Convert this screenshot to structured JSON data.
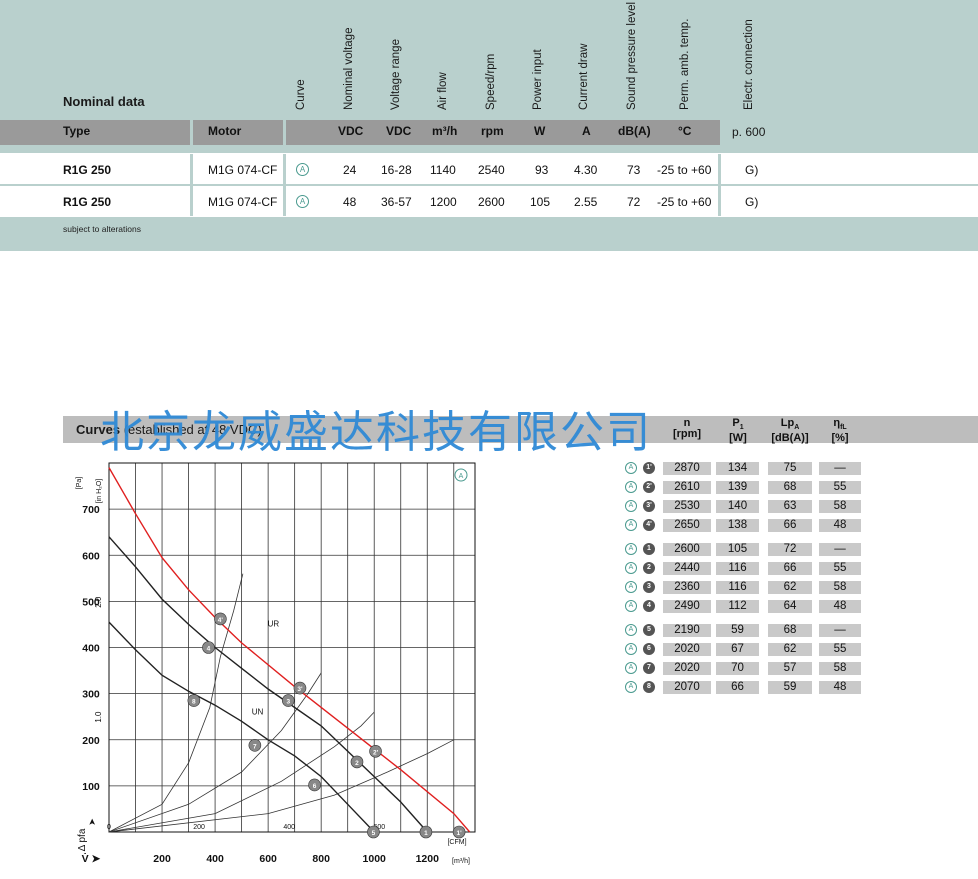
{
  "nominal": {
    "title": "Nominal data",
    "column_headers": [
      "Curve",
      "Nominal voltage",
      "Voltage range",
      "Air flow",
      "Speed/rpm",
      "Power input",
      "Current draw",
      "Sound pressure level",
      "Perm. amb. temp.",
      "Electr. connection"
    ],
    "type_label": "Type",
    "motor_label": "Motor",
    "units": [
      "VDC",
      "VDC",
      "m³/h",
      "rpm",
      "W",
      "A",
      "dB(A)",
      "°C"
    ],
    "page_ref": "p. 600",
    "rows": [
      {
        "type": "R1G 250",
        "motor": "M1G 074-CF",
        "curve": "A",
        "voltage": "24",
        "range": "16-28",
        "airflow": "1140",
        "speed": "2540",
        "power": "93",
        "current": "4.30",
        "sound": "73",
        "temp": "-25 to +60",
        "conn": "G)"
      },
      {
        "type": "R1G 250",
        "motor": "M1G 074-CF",
        "curve": "A",
        "voltage": "48",
        "range": "36-57",
        "airflow": "1200",
        "speed": "2600",
        "power": "105",
        "current": "2.55",
        "sound": "72",
        "temp": "-25 to +60",
        "conn": "G)"
      }
    ],
    "footnote": "subject to alterations"
  },
  "curves": {
    "title_bold": "Curves",
    "title_rest": " (established at 48 VDC)",
    "watermark": "北京龙威盛达科技有限公司",
    "table_headers": {
      "n": "n",
      "n_unit": "[rpm]",
      "p1": "P",
      "p1_sub": "1",
      "p1_unit": "[W]",
      "lpa": "Lp",
      "lpa_sub": "A",
      "lpa_unit": "[dB(A)]",
      "eta": "η",
      "eta_sub": "fL",
      "eta_unit": "[%]"
    },
    "table_rows": [
      {
        "curve": "A",
        "pt": "1'",
        "n": "2870",
        "p1": "134",
        "lpa": "75",
        "eta": "—"
      },
      {
        "curve": "A",
        "pt": "2'",
        "n": "2610",
        "p1": "139",
        "lpa": "68",
        "eta": "55"
      },
      {
        "curve": "A",
        "pt": "3'",
        "n": "2530",
        "p1": "140",
        "lpa": "63",
        "eta": "58"
      },
      {
        "curve": "A",
        "pt": "4'",
        "n": "2650",
        "p1": "138",
        "lpa": "66",
        "eta": "48"
      },
      {
        "curve": "A",
        "pt": "1",
        "n": "2600",
        "p1": "105",
        "lpa": "72",
        "eta": "—"
      },
      {
        "curve": "A",
        "pt": "2",
        "n": "2440",
        "p1": "116",
        "lpa": "66",
        "eta": "55"
      },
      {
        "curve": "A",
        "pt": "3",
        "n": "2360",
        "p1": "116",
        "lpa": "62",
        "eta": "58"
      },
      {
        "curve": "A",
        "pt": "4",
        "n": "2490",
        "p1": "112",
        "lpa": "64",
        "eta": "48"
      },
      {
        "curve": "A",
        "pt": "5",
        "n": "2190",
        "p1": "59",
        "lpa": "68",
        "eta": "—"
      },
      {
        "curve": "A",
        "pt": "6",
        "n": "2020",
        "p1": "67",
        "lpa": "62",
        "eta": "55"
      },
      {
        "curve": "A",
        "pt": "7",
        "n": "2020",
        "p1": "70",
        "lpa": "57",
        "eta": "58"
      },
      {
        "curve": "A",
        "pt": "8",
        "n": "2070",
        "p1": "66",
        "lpa": "59",
        "eta": "48"
      }
    ]
  },
  "chart_data": {
    "type": "line",
    "curve_marker": "A",
    "xlabel": "V̇",
    "xunit": "[m³/h]",
    "xunit2": "[CFM]",
    "ylabel": "Δ pfa",
    "yunit": "[Pa]",
    "yunit2": "[in H₂O]",
    "xlim": [
      0,
      1380
    ],
    "ylim": [
      0,
      800
    ],
    "x_ticks": [
      "200",
      "400",
      "600",
      "800",
      "1000",
      "1200"
    ],
    "x_tick_values": [
      200,
      400,
      600,
      800,
      1000,
      1200
    ],
    "cfm_ticks": [
      "0",
      "200",
      "400",
      "600"
    ],
    "cfm_tick_values": [
      0,
      200,
      400,
      600
    ],
    "y_ticks": [
      "100",
      "200",
      "300",
      "400",
      "500",
      "600",
      "700"
    ],
    "y_tick_values": [
      100,
      200,
      300,
      400,
      500,
      600,
      700
    ],
    "inh2o_ticks": [
      "1.0",
      "2.0"
    ],
    "inh2o_tick_values": [
      1.0,
      2.0
    ],
    "label_UR": "UR",
    "label_UN": "UN",
    "series": [
      {
        "name": "UR",
        "color": "#e02020",
        "points": [
          [
            0,
            790
          ],
          [
            100,
            690
          ],
          [
            200,
            595
          ],
          [
            300,
            525
          ],
          [
            400,
            465
          ],
          [
            500,
            410
          ],
          [
            700,
            315
          ],
          [
            900,
            225
          ],
          [
            1100,
            135
          ],
          [
            1300,
            40
          ],
          [
            1360,
            0
          ]
        ]
      },
      {
        "name": "UN",
        "color": "#222222",
        "points": [
          [
            0,
            640
          ],
          [
            100,
            575
          ],
          [
            200,
            505
          ],
          [
            300,
            450
          ],
          [
            400,
            400
          ],
          [
            500,
            355
          ],
          [
            600,
            310
          ],
          [
            700,
            270
          ],
          [
            800,
            230
          ],
          [
            900,
            175
          ],
          [
            1000,
            120
          ],
          [
            1100,
            65
          ],
          [
            1200,
            0
          ]
        ]
      },
      {
        "name": "",
        "color": "#222222",
        "points": [
          [
            0,
            455
          ],
          [
            100,
            395
          ],
          [
            200,
            340
          ],
          [
            300,
            305
          ],
          [
            400,
            275
          ],
          [
            500,
            240
          ],
          [
            600,
            200
          ],
          [
            700,
            165
          ],
          [
            800,
            120
          ],
          [
            900,
            60
          ],
          [
            1000,
            0
          ]
        ]
      }
    ],
    "system_curves": [
      {
        "points": [
          [
            0,
            0
          ],
          [
            200,
            60
          ],
          [
            300,
            150
          ],
          [
            380,
            270
          ],
          [
            420,
            380
          ],
          [
            470,
            480
          ],
          [
            505,
            560
          ]
        ]
      },
      {
        "points": [
          [
            0,
            0
          ],
          [
            300,
            60
          ],
          [
            500,
            130
          ],
          [
            650,
            220
          ],
          [
            750,
            300
          ],
          [
            800,
            345
          ]
        ]
      },
      {
        "points": [
          [
            0,
            0
          ],
          [
            400,
            40
          ],
          [
            650,
            110
          ],
          [
            850,
            185
          ],
          [
            950,
            230
          ],
          [
            1000,
            260
          ]
        ]
      },
      {
        "points": [
          [
            0,
            0
          ],
          [
            600,
            40
          ],
          [
            850,
            80
          ],
          [
            1050,
            130
          ],
          [
            1200,
            170
          ],
          [
            1300,
            200
          ]
        ]
      }
    ],
    "operating_points": [
      {
        "label": "1'",
        "x": 1320,
        "y": 0
      },
      {
        "label": "2'",
        "x": 1005,
        "y": 175
      },
      {
        "label": "3'",
        "x": 720,
        "y": 312
      },
      {
        "label": "4'",
        "x": 420,
        "y": 462
      },
      {
        "label": "1",
        "x": 1195,
        "y": 0
      },
      {
        "label": "2",
        "x": 935,
        "y": 152
      },
      {
        "label": "3",
        "x": 676,
        "y": 285
      },
      {
        "label": "4",
        "x": 375,
        "y": 400
      },
      {
        "label": "5",
        "x": 997,
        "y": 0
      },
      {
        "label": "6",
        "x": 775,
        "y": 102
      },
      {
        "label": "7",
        "x": 550,
        "y": 188
      },
      {
        "label": "8",
        "x": 320,
        "y": 285
      }
    ]
  }
}
